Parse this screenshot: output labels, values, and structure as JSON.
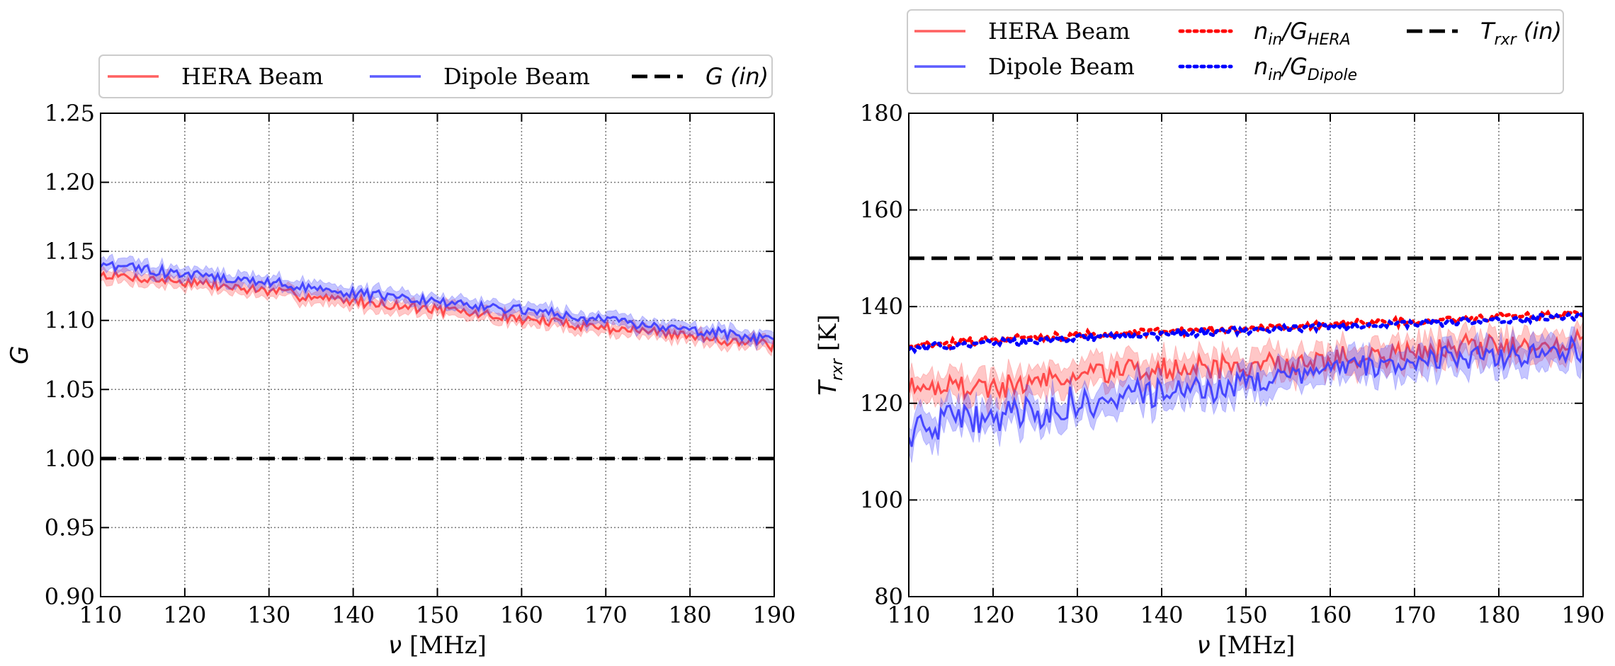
{
  "chart_data": [
    {
      "type": "line",
      "panel": "left",
      "xlabel_symbol": "ν",
      "xlabel_unit": "[MHz]",
      "ylabel": "G",
      "xlim": [
        110,
        190
      ],
      "ylim": [
        0.9,
        1.25
      ],
      "xticks": [
        110,
        120,
        130,
        140,
        150,
        160,
        170,
        180,
        190
      ],
      "yticks": [
        0.9,
        0.95,
        1.0,
        1.05,
        1.1,
        1.15,
        1.2,
        1.25
      ],
      "ytick_labels": [
        "0.90",
        "0.95",
        "1.00",
        "1.05",
        "1.10",
        "1.15",
        "1.20",
        "1.25"
      ],
      "grid": true,
      "legend_placement": "top, outside",
      "series": [
        {
          "name": "HERA Beam",
          "color": "#ff4444",
          "style": "solid",
          "band": true,
          "x": [
            110,
            120,
            130,
            140,
            150,
            160,
            170,
            180,
            190
          ],
          "values": [
            1.133,
            1.128,
            1.121,
            1.114,
            1.108,
            1.101,
            1.095,
            1.089,
            1.082
          ]
        },
        {
          "name": "Dipole Beam",
          "color": "#4040ff",
          "style": "solid",
          "band": true,
          "x": [
            110,
            120,
            130,
            140,
            150,
            160,
            170,
            180,
            190
          ],
          "values": [
            1.14,
            1.134,
            1.127,
            1.12,
            1.114,
            1.107,
            1.1,
            1.093,
            1.086
          ]
        },
        {
          "name": "G (in)",
          "label_main": "G",
          "label_paren": "(in)",
          "color": "#000000",
          "style": "dashed",
          "band": false,
          "x": [
            110,
            190
          ],
          "values": [
            1.0,
            1.0
          ]
        }
      ]
    },
    {
      "type": "line",
      "panel": "right",
      "xlabel_symbol": "ν",
      "xlabel_unit": "[MHz]",
      "ylabel_main": "T",
      "ylabel_sub": "rxr",
      "ylabel_unit": "[K]",
      "xlim": [
        110,
        190
      ],
      "ylim": [
        80,
        180
      ],
      "xticks": [
        110,
        120,
        130,
        140,
        150,
        160,
        170,
        180,
        190
      ],
      "yticks": [
        80,
        100,
        120,
        140,
        160,
        180
      ],
      "grid": true,
      "legend_placement": "top, outside",
      "series": [
        {
          "name": "HERA Beam",
          "color": "#ff4444",
          "style": "solid",
          "band": true,
          "x": [
            110,
            120,
            130,
            140,
            150,
            160,
            170,
            180,
            190
          ],
          "values": [
            124,
            123,
            126,
            127,
            127.5,
            129,
            130.5,
            132,
            133
          ]
        },
        {
          "name": "Dipole Beam",
          "color": "#4040ff",
          "style": "solid",
          "band": true,
          "x": [
            110,
            120,
            130,
            140,
            150,
            160,
            170,
            180,
            190
          ],
          "values": [
            114,
            117,
            120,
            122,
            124,
            126.5,
            128.5,
            130,
            131
          ]
        },
        {
          "name": "n_in/G_HERA",
          "label_main": "n",
          "label_sub1": "in",
          "label_mid": "/G",
          "label_sub2": "HERA",
          "color": "#ff0000",
          "style": "dotted",
          "band": false,
          "x": [
            110,
            120,
            130,
            140,
            150,
            160,
            170,
            180,
            190
          ],
          "values": [
            132,
            133,
            134,
            134.8,
            135.5,
            136.2,
            137,
            137.8,
            138.5
          ]
        },
        {
          "name": "n_in/G_Dipole",
          "label_main": "n",
          "label_sub1": "in",
          "label_mid": "/G",
          "label_sub2": "Dipole",
          "color": "#0000ff",
          "style": "dotted",
          "band": false,
          "x": [
            110,
            120,
            130,
            140,
            150,
            160,
            170,
            180,
            190
          ],
          "values": [
            131.5,
            132.5,
            133.5,
            134.3,
            135,
            135.8,
            136.5,
            137.2,
            137.8
          ]
        },
        {
          "name": "T_rxr (in)",
          "label_main": "T",
          "label_sub1": "rxr",
          "label_paren": "(in)",
          "color": "#000000",
          "style": "dashed",
          "band": false,
          "x": [
            110,
            190
          ],
          "values": [
            150,
            150
          ]
        }
      ]
    }
  ]
}
